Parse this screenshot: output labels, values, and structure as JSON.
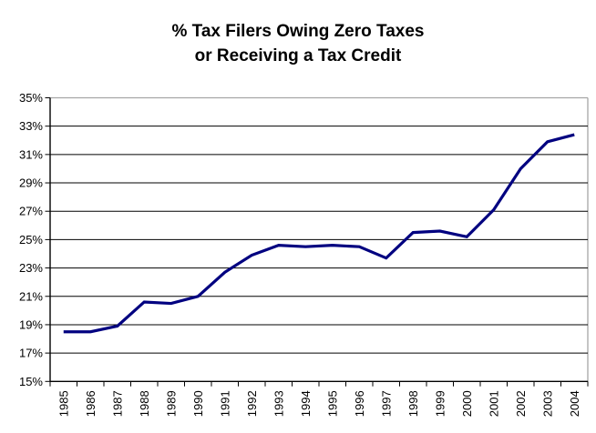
{
  "title": {
    "line1": "% Tax Filers Owing Zero Taxes",
    "line2": "or Receiving a Tax Credit"
  },
  "chart_data": {
    "type": "line",
    "title": "% Tax Filers Owing Zero Taxes or Receiving a Tax Credit",
    "categories": [
      "1985",
      "1986",
      "1987",
      "1988",
      "1989",
      "1990",
      "1991",
      "1992",
      "1993",
      "1994",
      "1995",
      "1996",
      "1997",
      "1998",
      "1999",
      "2000",
      "2001",
      "2002",
      "2003",
      "2004"
    ],
    "values": [
      18.5,
      18.5,
      18.9,
      20.6,
      20.5,
      21.0,
      22.7,
      23.9,
      24.6,
      24.5,
      24.6,
      24.5,
      23.7,
      25.5,
      25.6,
      25.2,
      27.1,
      30.0,
      31.9,
      32.4
    ],
    "ylim": [
      15,
      35
    ],
    "ytick_step": 2,
    "ylabel_format": "{v}%",
    "xlabel": "",
    "ylabel": "",
    "grid": "horizontal",
    "legend": "none",
    "x_label_rotation": -90,
    "colors": {
      "line": "#000080",
      "gridline": "#000000",
      "plot_border": "#A6A6A6",
      "axis": "#000000",
      "text": "#000000",
      "background": "#FFFFFF"
    }
  }
}
